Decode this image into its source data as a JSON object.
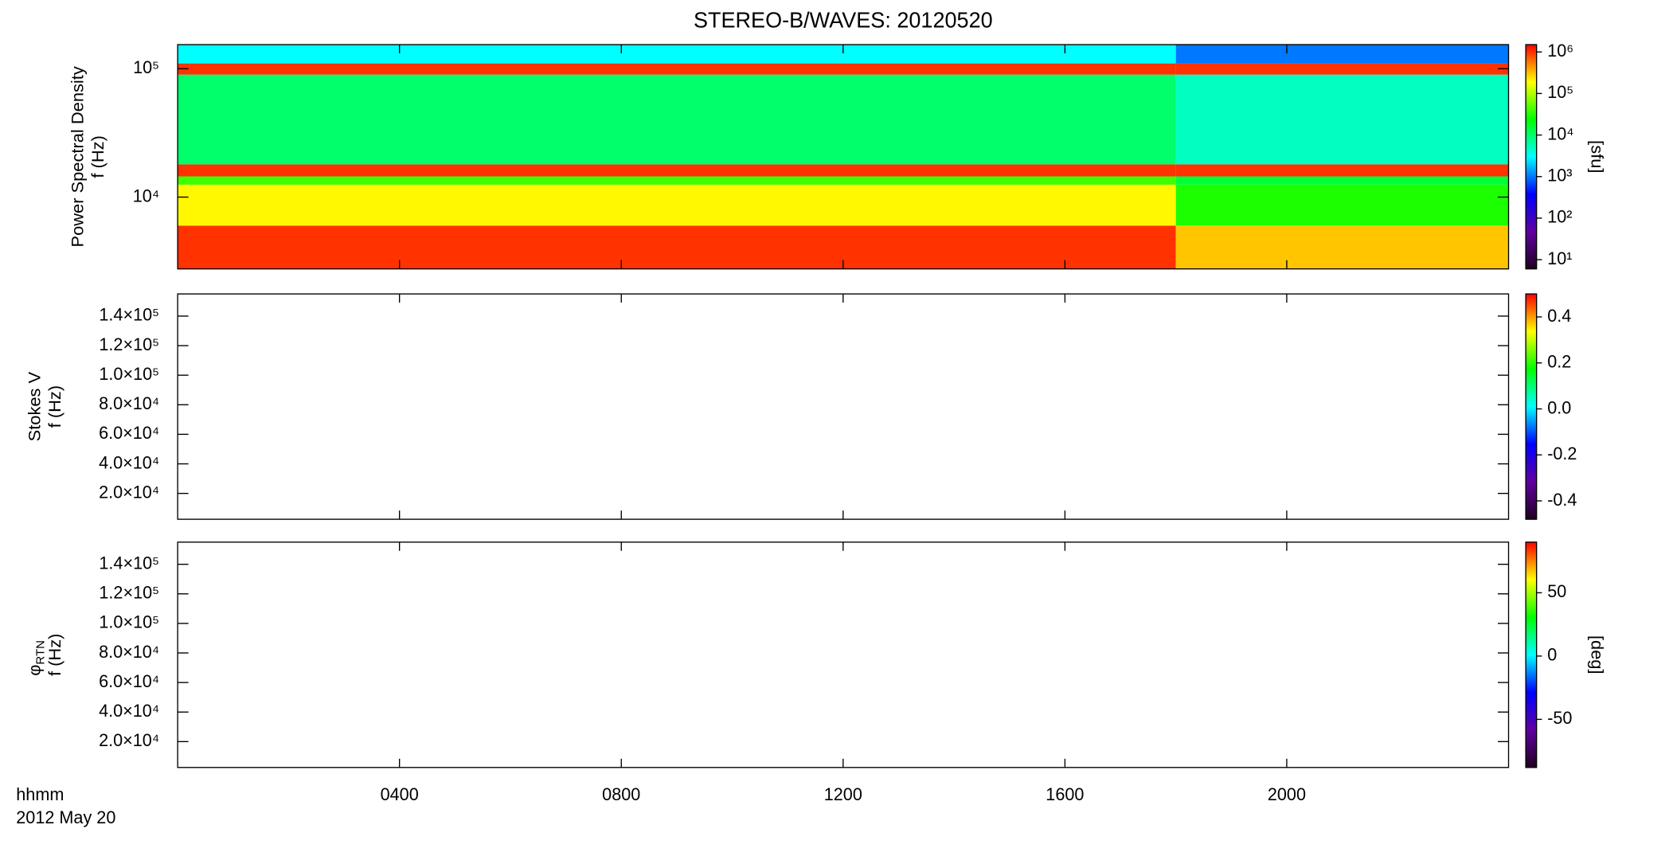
{
  "chart_data": [
    {
      "type": "heatmap",
      "title": "STEREO-B/WAVES: 20120520",
      "ylabel": [
        "Power Spectral Density",
        "f (Hz)"
      ],
      "zlabel": "[sfu]",
      "xlim": [
        0,
        24
      ],
      "xticks": [
        {
          "value": 4,
          "label": "0400"
        },
        {
          "value": 8,
          "label": "0800"
        },
        {
          "value": 12,
          "label": "1200"
        },
        {
          "value": 16,
          "label": "1600"
        },
        {
          "value": 20,
          "label": "2000"
        }
      ],
      "ylim": [
        2760,
        154000
      ],
      "ylog": true,
      "yticks": [
        {
          "value": 10000,
          "label": "10⁴"
        },
        {
          "value": 100000,
          "label": "10⁵"
        }
      ],
      "x_edges": [
        0,
        18,
        24
      ],
      "y_edges": [
        2760,
        6000,
        12500,
        14500,
        18000,
        90000,
        110000,
        154000
      ],
      "z": [
        [
          1000000,
          300000
        ],
        [
          200000,
          30000
        ],
        [
          40000,
          15000
        ],
        [
          1000000,
          1000000
        ],
        [
          10000,
          5000
        ],
        [
          1000000,
          1000000
        ],
        [
          3000,
          1000
        ]
      ],
      "zlim": [
        6,
        1500000
      ],
      "zlog": true,
      "zticks": [
        {
          "value": 10,
          "label": "10¹"
        },
        {
          "value": 100,
          "label": "10²"
        },
        {
          "value": 1000,
          "label": "10³"
        },
        {
          "value": 10000,
          "label": "10⁴"
        },
        {
          "value": 100000,
          "label": "10⁵"
        },
        {
          "value": 1000000,
          "label": "10⁶"
        }
      ],
      "colormap": [
        "#200020",
        "#6000a0",
        "#0000ff",
        "#00ffff",
        "#00ff00",
        "#ffff00",
        "#ff0000"
      ]
    },
    {
      "type": "heatmap",
      "ylabel": [
        "Stokes V",
        "f (Hz)"
      ],
      "xlim": [
        0,
        24
      ],
      "xticks": [
        {
          "value": 4,
          "label": "0400"
        },
        {
          "value": 8,
          "label": "0800"
        },
        {
          "value": 12,
          "label": "1200"
        },
        {
          "value": 16,
          "label": "1600"
        },
        {
          "value": 20,
          "label": "2000"
        }
      ],
      "ylim": [
        2500,
        155000
      ],
      "yticks": [
        {
          "value": 20000,
          "label": "2.0×10⁴"
        },
        {
          "value": 40000,
          "label": "4.0×10⁴"
        },
        {
          "value": 60000,
          "label": "6.0×10⁴"
        },
        {
          "value": 80000,
          "label": "8.0×10⁴"
        },
        {
          "value": 100000,
          "label": "1.0×10⁵"
        },
        {
          "value": 120000,
          "label": "1.2×10⁵"
        },
        {
          "value": 140000,
          "label": "1.4×10⁵"
        }
      ],
      "zlim": [
        -0.48,
        0.5
      ],
      "zticks": [
        -0.4,
        -0.2,
        {
          "value": 0,
          "label": "0.0"
        },
        0.2,
        0.4
      ],
      "colormap": [
        "#200020",
        "#6000a0",
        "#0000ff",
        "#00ffff",
        "#00ff00",
        "#ffff00",
        "#ff0000"
      ]
    },
    {
      "type": "heatmap",
      "ylabel": [
        "φ",
        "f (Hz)"
      ],
      "ylabel_subscript": "RTN",
      "zlabel": "[deg]",
      "xlabel": "hhmm",
      "date_label": "2012 May 20",
      "xlim": [
        0,
        24
      ],
      "xticks": [
        {
          "value": 4,
          "label": "0400"
        },
        {
          "value": 8,
          "label": "0800"
        },
        {
          "value": 12,
          "label": "1200"
        },
        {
          "value": 16,
          "label": "1600"
        },
        {
          "value": 20,
          "label": "2000"
        }
      ],
      "ylim": [
        2500,
        155000
      ],
      "yticks": [
        {
          "value": 20000,
          "label": "2.0×10⁴"
        },
        {
          "value": 40000,
          "label": "4.0×10⁴"
        },
        {
          "value": 60000,
          "label": "6.0×10⁴"
        },
        {
          "value": 80000,
          "label": "8.0×10⁴"
        },
        {
          "value": 100000,
          "label": "1.0×10⁵"
        },
        {
          "value": 120000,
          "label": "1.2×10⁵"
        },
        {
          "value": 140000,
          "label": "1.4×10⁵"
        }
      ],
      "zlim": [
        -88,
        90
      ],
      "zticks": [
        -50,
        0,
        50
      ],
      "colormap": [
        "#200020",
        "#6000a0",
        "#0000ff",
        "#00ffff",
        "#00ff00",
        "#ffff00",
        "#ff0000"
      ]
    }
  ]
}
